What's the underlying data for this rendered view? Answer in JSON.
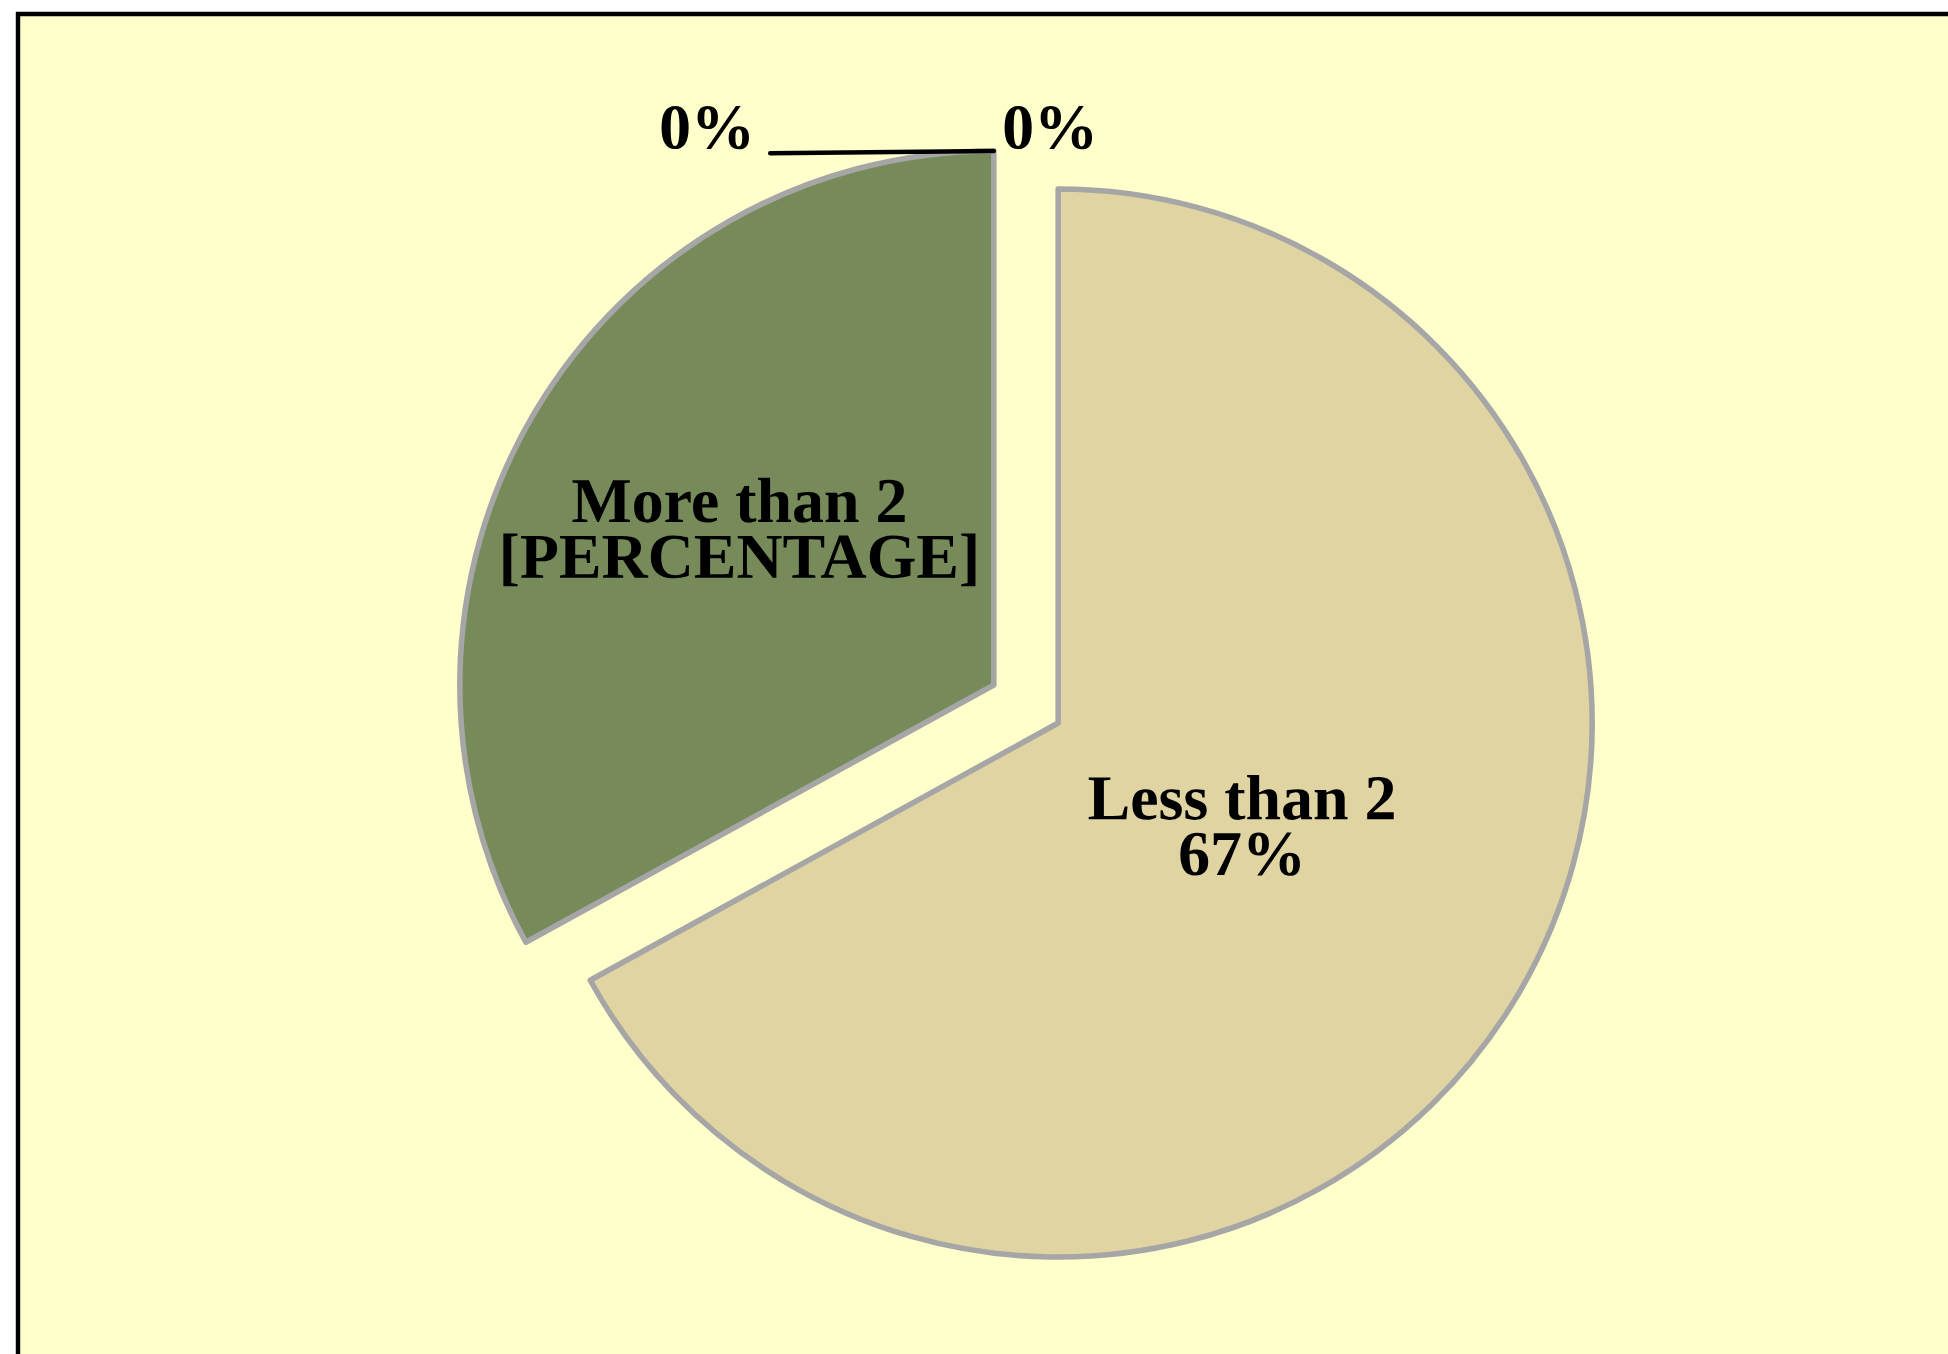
{
  "chart_data": {
    "type": "pie",
    "categories": [
      "Less than 2",
      "More than 2",
      null,
      null
    ],
    "values": [
      67,
      33,
      0,
      0
    ],
    "colors": [
      "#e0d4a3",
      "#778b5a",
      "#4f81bd",
      "#c0504d"
    ],
    "value_labels": [
      "67%",
      "[PERCENTAGE]",
      "0%",
      "0%"
    ]
  }
}
